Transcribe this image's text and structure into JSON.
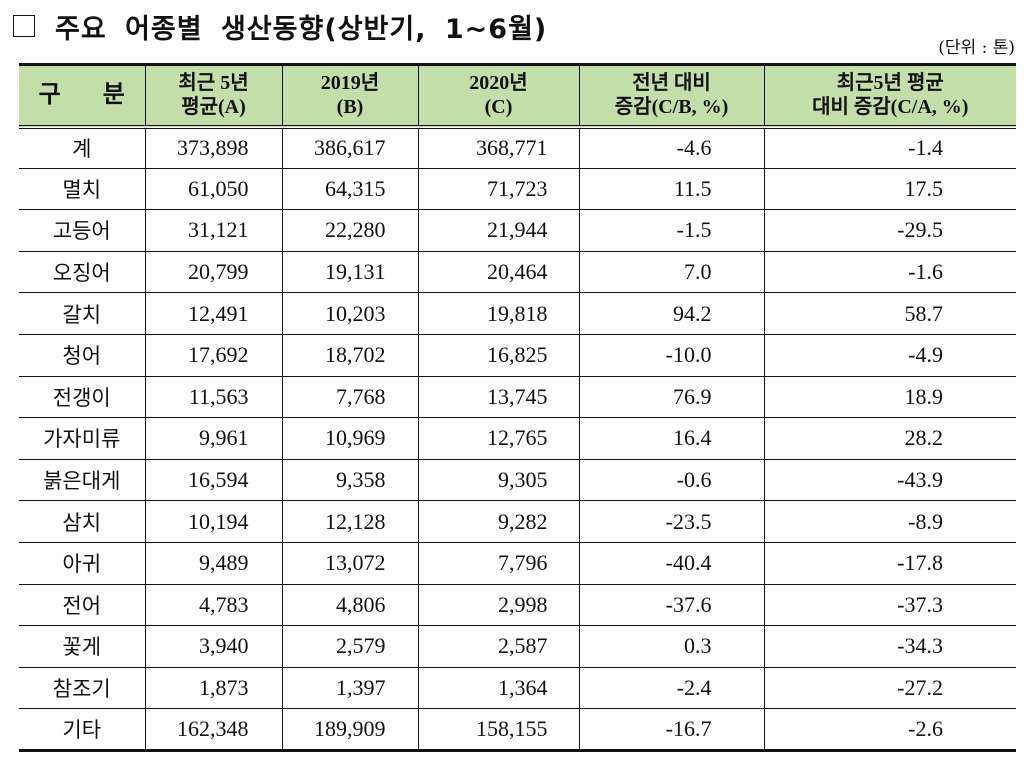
{
  "title": {
    "checkbox_icon": "empty-square",
    "text": "주요 어종별 생산동향(상반기, 1~6월)"
  },
  "unit_label": "(단위 : 톤)",
  "colors": {
    "header_background": "#c4deaa",
    "border": "#111111"
  },
  "table": {
    "headers": [
      {
        "line1": "구 분",
        "line2": ""
      },
      {
        "line1": "최근 5년",
        "line2": "평균(A)"
      },
      {
        "line1": "2019년",
        "line2": "(B)"
      },
      {
        "line1": "2020년",
        "line2": "(C)"
      },
      {
        "line1": "전년 대비",
        "line2": "증감(C/B, %)"
      },
      {
        "line1": "최근5년 평균",
        "line2": "대비 증감(C/A, %)"
      }
    ],
    "rows": [
      {
        "name": "계",
        "avg5": "373,898",
        "y2019": "386,617",
        "y2020": "368,771",
        "yoy": "-4.6",
        "vs5": "-1.4"
      },
      {
        "name": "멸치",
        "avg5": "61,050",
        "y2019": "64,315",
        "y2020": "71,723",
        "yoy": "11.5",
        "vs5": "17.5"
      },
      {
        "name": "고등어",
        "avg5": "31,121",
        "y2019": "22,280",
        "y2020": "21,944",
        "yoy": "-1.5",
        "vs5": "-29.5"
      },
      {
        "name": "오징어",
        "avg5": "20,799",
        "y2019": "19,131",
        "y2020": "20,464",
        "yoy": "7.0",
        "vs5": "-1.6"
      },
      {
        "name": "갈치",
        "avg5": "12,491",
        "y2019": "10,203",
        "y2020": "19,818",
        "yoy": "94.2",
        "vs5": "58.7"
      },
      {
        "name": "청어",
        "avg5": "17,692",
        "y2019": "18,702",
        "y2020": "16,825",
        "yoy": "-10.0",
        "vs5": "-4.9"
      },
      {
        "name": "전갱이",
        "avg5": "11,563",
        "y2019": "7,768",
        "y2020": "13,745",
        "yoy": "76.9",
        "vs5": "18.9"
      },
      {
        "name": "가자미류",
        "avg5": "9,961",
        "y2019": "10,969",
        "y2020": "12,765",
        "yoy": "16.4",
        "vs5": "28.2"
      },
      {
        "name": "붉은대게",
        "avg5": "16,594",
        "y2019": "9,358",
        "y2020": "9,305",
        "yoy": "-0.6",
        "vs5": "-43.9"
      },
      {
        "name": "삼치",
        "avg5": "10,194",
        "y2019": "12,128",
        "y2020": "9,282",
        "yoy": "-23.5",
        "vs5": "-8.9"
      },
      {
        "name": "아귀",
        "avg5": "9,489",
        "y2019": "13,072",
        "y2020": "7,796",
        "yoy": "-40.4",
        "vs5": "-17.8"
      },
      {
        "name": "전어",
        "avg5": "4,783",
        "y2019": "4,806",
        "y2020": "2,998",
        "yoy": "-37.6",
        "vs5": "-37.3"
      },
      {
        "name": "꽃게",
        "avg5": "3,940",
        "y2019": "2,579",
        "y2020": "2,587",
        "yoy": "0.3",
        "vs5": "-34.3"
      },
      {
        "name": "참조기",
        "avg5": "1,873",
        "y2019": "1,397",
        "y2020": "1,364",
        "yoy": "-2.4",
        "vs5": "-27.2"
      },
      {
        "name": "기타",
        "avg5": "162,348",
        "y2019": "189,909",
        "y2020": "158,155",
        "yoy": "-16.7",
        "vs5": "-2.6"
      }
    ]
  }
}
